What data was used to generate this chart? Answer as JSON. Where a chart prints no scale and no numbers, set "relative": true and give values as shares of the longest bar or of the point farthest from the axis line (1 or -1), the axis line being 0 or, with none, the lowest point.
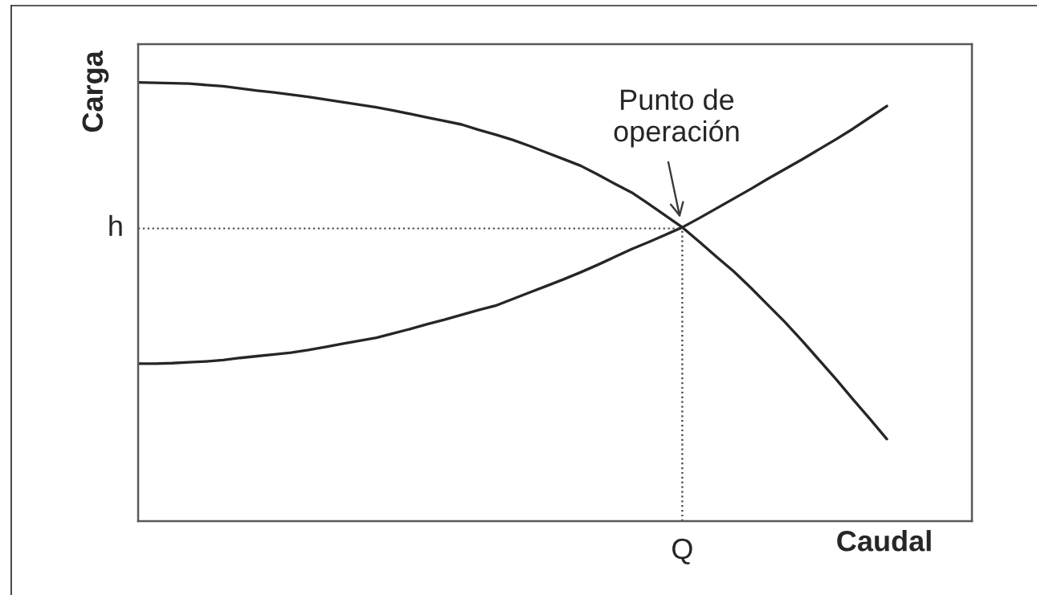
{
  "chart_data": {
    "type": "line",
    "relative": true,
    "xlabel": "Caudal",
    "ylabel": "Carga",
    "categories": [
      null,
      null,
      null,
      null,
      null,
      null,
      null,
      null,
      null,
      null,
      null,
      null,
      null,
      null,
      null,
      null,
      null,
      null,
      null,
      null,
      null,
      null,
      null,
      null,
      null,
      null,
      null,
      null,
      null,
      null,
      null,
      null,
      null,
      null,
      null,
      null,
      null,
      null,
      null,
      null,
      null,
      null,
      null,
      null,
      null,
      null,
      null,
      null,
      null,
      null
    ],
    "series": [
      {
        "color": "#262626",
        "values": [
          1,
          0.999,
          0.998,
          0.997,
          0.994,
          0.991,
          0.986,
          0.981,
          0.977,
          0.972,
          0.967,
          0.961,
          0.955,
          0.949,
          0.943,
          0.936,
          0.928,
          0.92,
          0.912,
          0.904,
          0.892,
          0.881,
          0.869,
          0.855,
          0.84,
          0.825,
          0.81,
          0.79,
          0.769,
          0.749,
          0.723,
          0.696,
          0.669,
          0.636,
          0.602,
          0.569,
          0.532,
          0.493,
          0.454,
          0.412,
          0.368,
          0.324,
          0.278,
          0.233,
          0.187,
          null,
          null,
          null,
          null,
          null
        ]
      },
      {
        "color": "#262626",
        "values": [
          0.359,
          0.359,
          0.36,
          0.362,
          0.364,
          0.367,
          0.372,
          0.376,
          0.38,
          0.384,
          0.39,
          0.397,
          0.404,
          0.411,
          0.418,
          0.428,
          0.438,
          0.449,
          0.459,
          0.47,
          0.481,
          0.491,
          0.506,
          0.521,
          0.536,
          0.551,
          0.567,
          0.584,
          0.602,
          0.62,
          0.636,
          0.653,
          0.67,
          0.691,
          0.713,
          0.735,
          0.757,
          0.78,
          0.802,
          0.824,
          0.847,
          0.87,
          0.894,
          0.92,
          0.946,
          null,
          null,
          null,
          null,
          null
        ]
      }
    ],
    "ref_lines": [
      {
        "axis": "y",
        "value": 0.667,
        "label": "h",
        "line_style": "dotted",
        "color": "#404040"
      },
      {
        "axis": "x",
        "value": "Q",
        "line_style": "dotted",
        "color": "#404040"
      }
    ],
    "annotations": [
      {
        "text": "Punto de\noperación",
        "y": 0.667
      }
    ]
  }
}
